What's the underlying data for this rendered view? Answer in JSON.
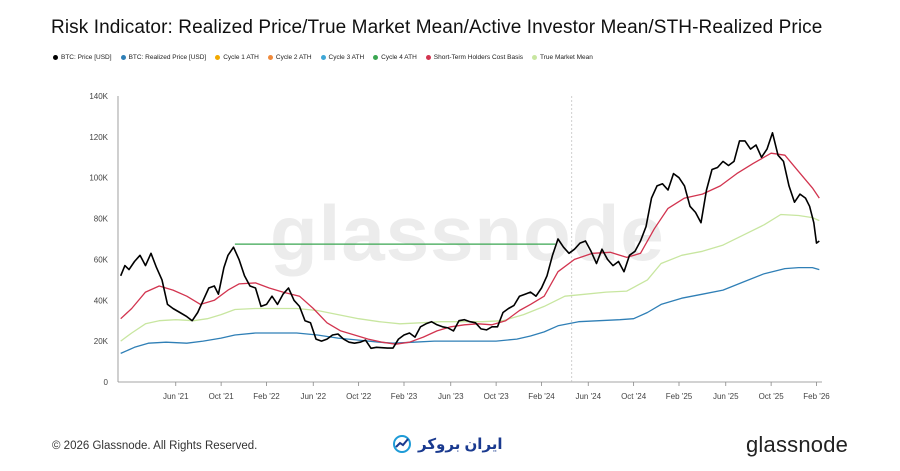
{
  "header": {
    "title": "Risk Indicator: Realized Price/True Market Mean/Active Investor Mean/STH-Realized Price"
  },
  "legend": [
    {
      "label": "BTC: Price [USD]",
      "color": "#000000"
    },
    {
      "label": "BTC: Realized Price [USD]",
      "color": "#2f7fb6"
    },
    {
      "label": "Cycle 1 ATH",
      "color": "#f2a900"
    },
    {
      "label": "Cycle 2 ATH",
      "color": "#f08a3c"
    },
    {
      "label": "Cycle 3 ATH",
      "color": "#3fa7d6"
    },
    {
      "label": "Cycle 4 ATH",
      "color": "#3aa651"
    },
    {
      "label": "Short-Term Holders Cost Basis",
      "color": "#d2344f"
    },
    {
      "label": "True Market Mean",
      "color": "#c8e6a0"
    }
  ],
  "watermark": "glassnode",
  "chart_data": {
    "type": "line",
    "y_ticks": [
      "140K",
      "120K",
      "100K",
      "80K",
      "60K",
      "40K",
      "20K",
      "0"
    ],
    "ylim": [
      0,
      140000
    ],
    "x_ticks": [
      {
        "label": "Jun '21",
        "t": 2021.42
      },
      {
        "label": "Oct '21",
        "t": 2021.75
      },
      {
        "label": "Feb '22",
        "t": 2022.08
      },
      {
        "label": "Jun '22",
        "t": 2022.42
      },
      {
        "label": "Oct '22",
        "t": 2022.75
      },
      {
        "label": "Feb '23",
        "t": 2023.08
      },
      {
        "label": "Jun '23",
        "t": 2023.42
      },
      {
        "label": "Oct '23",
        "t": 2023.75
      },
      {
        "label": "Feb '24",
        "t": 2024.08
      },
      {
        "label": "Jun '24",
        "t": 2024.42
      },
      {
        "label": "Oct '24",
        "t": 2024.75
      },
      {
        "label": "Feb '25",
        "t": 2025.08
      },
      {
        "label": "Jun '25",
        "t": 2025.42
      },
      {
        "label": "Oct '25",
        "t": 2025.75
      },
      {
        "label": "Feb '26",
        "t": 2026.08
      }
    ],
    "xlim": [
      2021.0,
      2026.12
    ],
    "halving_marker": 2024.3,
    "cycle4_ath_line": {
      "value": 67500,
      "from": 2021.85,
      "to": 2024.18
    },
    "series": [
      {
        "name": "BTC: Price [USD]",
        "color": "#000000",
        "points": [
          [
            2021.02,
            52000
          ],
          [
            2021.05,
            57000
          ],
          [
            2021.08,
            55000
          ],
          [
            2021.12,
            59000
          ],
          [
            2021.16,
            62000
          ],
          [
            2021.2,
            57000
          ],
          [
            2021.24,
            63000
          ],
          [
            2021.28,
            56000
          ],
          [
            2021.32,
            50000
          ],
          [
            2021.36,
            38000
          ],
          [
            2021.4,
            36000
          ],
          [
            2021.45,
            34000
          ],
          [
            2021.5,
            32000
          ],
          [
            2021.54,
            30000
          ],
          [
            2021.58,
            34000
          ],
          [
            2021.62,
            40000
          ],
          [
            2021.66,
            46000
          ],
          [
            2021.7,
            47000
          ],
          [
            2021.73,
            43000
          ],
          [
            2021.77,
            56000
          ],
          [
            2021.8,
            62000
          ],
          [
            2021.84,
            66000
          ],
          [
            2021.88,
            60000
          ],
          [
            2021.92,
            52000
          ],
          [
            2021.96,
            47000
          ],
          [
            2022.0,
            46000
          ],
          [
            2022.04,
            37000
          ],
          [
            2022.08,
            38000
          ],
          [
            2022.12,
            42000
          ],
          [
            2022.16,
            38000
          ],
          [
            2022.2,
            43000
          ],
          [
            2022.24,
            46000
          ],
          [
            2022.28,
            40000
          ],
          [
            2022.32,
            37000
          ],
          [
            2022.36,
            30000
          ],
          [
            2022.4,
            29000
          ],
          [
            2022.44,
            21000
          ],
          [
            2022.48,
            20000
          ],
          [
            2022.52,
            21000
          ],
          [
            2022.56,
            23000
          ],
          [
            2022.6,
            23500
          ],
          [
            2022.64,
            21000
          ],
          [
            2022.68,
            19500
          ],
          [
            2022.72,
            19000
          ],
          [
            2022.76,
            19500
          ],
          [
            2022.8,
            20500
          ],
          [
            2022.84,
            16500
          ],
          [
            2022.88,
            17000
          ],
          [
            2022.92,
            16800
          ],
          [
            2022.96,
            16600
          ],
          [
            2023.0,
            16600
          ],
          [
            2023.04,
            21000
          ],
          [
            2023.08,
            23000
          ],
          [
            2023.12,
            24000
          ],
          [
            2023.16,
            22000
          ],
          [
            2023.2,
            27000
          ],
          [
            2023.24,
            28500
          ],
          [
            2023.28,
            29500
          ],
          [
            2023.32,
            28000
          ],
          [
            2023.36,
            27000
          ],
          [
            2023.4,
            26500
          ],
          [
            2023.44,
            25000
          ],
          [
            2023.48,
            30000
          ],
          [
            2023.52,
            30500
          ],
          [
            2023.56,
            29500
          ],
          [
            2023.6,
            29000
          ],
          [
            2023.64,
            26000
          ],
          [
            2023.68,
            25500
          ],
          [
            2023.72,
            27000
          ],
          [
            2023.76,
            27000
          ],
          [
            2023.8,
            34000
          ],
          [
            2023.84,
            36000
          ],
          [
            2023.88,
            37500
          ],
          [
            2023.92,
            42000
          ],
          [
            2023.96,
            43000
          ],
          [
            2024.0,
            44000
          ],
          [
            2024.04,
            42000
          ],
          [
            2024.08,
            46000
          ],
          [
            2024.12,
            52000
          ],
          [
            2024.16,
            62000
          ],
          [
            2024.2,
            70000
          ],
          [
            2024.24,
            66000
          ],
          [
            2024.28,
            63000
          ],
          [
            2024.32,
            65000
          ],
          [
            2024.36,
            68000
          ],
          [
            2024.4,
            69000
          ],
          [
            2024.44,
            64000
          ],
          [
            2024.48,
            58000
          ],
          [
            2024.52,
            65000
          ],
          [
            2024.56,
            60000
          ],
          [
            2024.6,
            57000
          ],
          [
            2024.64,
            59000
          ],
          [
            2024.68,
            54000
          ],
          [
            2024.72,
            62000
          ],
          [
            2024.76,
            64000
          ],
          [
            2024.8,
            69000
          ],
          [
            2024.84,
            76000
          ],
          [
            2024.88,
            90000
          ],
          [
            2024.92,
            96000
          ],
          [
            2024.96,
            97000
          ],
          [
            2025.0,
            94000
          ],
          [
            2025.04,
            102000
          ],
          [
            2025.08,
            100000
          ],
          [
            2025.12,
            96000
          ],
          [
            2025.16,
            86000
          ],
          [
            2025.2,
            83000
          ],
          [
            2025.24,
            78000
          ],
          [
            2025.28,
            94000
          ],
          [
            2025.32,
            104000
          ],
          [
            2025.36,
            105000
          ],
          [
            2025.4,
            108000
          ],
          [
            2025.44,
            106000
          ],
          [
            2025.48,
            108000
          ],
          [
            2025.52,
            118000
          ],
          [
            2025.56,
            118000
          ],
          [
            2025.6,
            114000
          ],
          [
            2025.64,
            116000
          ],
          [
            2025.68,
            110000
          ],
          [
            2025.72,
            114000
          ],
          [
            2025.76,
            122000
          ],
          [
            2025.8,
            111000
          ],
          [
            2025.84,
            108000
          ],
          [
            2025.88,
            96000
          ],
          [
            2025.92,
            88000
          ],
          [
            2025.96,
            92000
          ],
          [
            2026.0,
            90000
          ],
          [
            2026.03,
            86000
          ],
          [
            2026.06,
            78000
          ],
          [
            2026.08,
            68000
          ],
          [
            2026.1,
            69000
          ]
        ]
      },
      {
        "name": "BTC: Realized Price [USD]",
        "color": "#2f7fb6",
        "points": [
          [
            2021.02,
            14000
          ],
          [
            2021.12,
            17000
          ],
          [
            2021.22,
            19000
          ],
          [
            2021.35,
            19500
          ],
          [
            2021.5,
            19000
          ],
          [
            2021.62,
            20000
          ],
          [
            2021.75,
            21500
          ],
          [
            2021.85,
            23000
          ],
          [
            2022.0,
            24000
          ],
          [
            2022.15,
            24000
          ],
          [
            2022.3,
            24000
          ],
          [
            2022.45,
            23000
          ],
          [
            2022.6,
            21500
          ],
          [
            2022.75,
            20500
          ],
          [
            2022.9,
            19500
          ],
          [
            2023.0,
            19000
          ],
          [
            2023.15,
            19500
          ],
          [
            2023.3,
            20000
          ],
          [
            2023.45,
            20000
          ],
          [
            2023.6,
            20000
          ],
          [
            2023.75,
            20000
          ],
          [
            2023.9,
            21000
          ],
          [
            2024.0,
            22500
          ],
          [
            2024.1,
            24500
          ],
          [
            2024.2,
            27500
          ],
          [
            2024.35,
            29500
          ],
          [
            2024.5,
            30000
          ],
          [
            2024.65,
            30500
          ],
          [
            2024.75,
            31000
          ],
          [
            2024.85,
            34000
          ],
          [
            2024.95,
            38000
          ],
          [
            2025.1,
            41000
          ],
          [
            2025.25,
            43000
          ],
          [
            2025.4,
            45000
          ],
          [
            2025.55,
            49000
          ],
          [
            2025.7,
            53000
          ],
          [
            2025.85,
            55500
          ],
          [
            2025.95,
            56000
          ],
          [
            2026.05,
            56000
          ],
          [
            2026.1,
            55000
          ]
        ]
      },
      {
        "name": "Short-Term Holders Cost Basis",
        "color": "#d2344f",
        "points": [
          [
            2021.02,
            31000
          ],
          [
            2021.1,
            36000
          ],
          [
            2021.2,
            44000
          ],
          [
            2021.3,
            47000
          ],
          [
            2021.4,
            45000
          ],
          [
            2021.5,
            42000
          ],
          [
            2021.6,
            38000
          ],
          [
            2021.7,
            40000
          ],
          [
            2021.8,
            45000
          ],
          [
            2021.88,
            48000
          ],
          [
            2022.0,
            48500
          ],
          [
            2022.1,
            46000
          ],
          [
            2022.2,
            44000
          ],
          [
            2022.32,
            42000
          ],
          [
            2022.42,
            36000
          ],
          [
            2022.52,
            29000
          ],
          [
            2022.62,
            25000
          ],
          [
            2022.72,
            23000
          ],
          [
            2022.82,
            21000
          ],
          [
            2022.92,
            19500
          ],
          [
            2023.02,
            18500
          ],
          [
            2023.12,
            19500
          ],
          [
            2023.22,
            22000
          ],
          [
            2023.32,
            25000
          ],
          [
            2023.42,
            27000
          ],
          [
            2023.52,
            28000
          ],
          [
            2023.62,
            28500
          ],
          [
            2023.72,
            28000
          ],
          [
            2023.82,
            30000
          ],
          [
            2023.92,
            35000
          ],
          [
            2024.0,
            38000
          ],
          [
            2024.1,
            42000
          ],
          [
            2024.2,
            54000
          ],
          [
            2024.32,
            60000
          ],
          [
            2024.45,
            63000
          ],
          [
            2024.58,
            63500
          ],
          [
            2024.7,
            61000
          ],
          [
            2024.8,
            63000
          ],
          [
            2024.9,
            75000
          ],
          [
            2025.0,
            85000
          ],
          [
            2025.12,
            90000
          ],
          [
            2025.25,
            92000
          ],
          [
            2025.38,
            96000
          ],
          [
            2025.5,
            102000
          ],
          [
            2025.62,
            107000
          ],
          [
            2025.75,
            112000
          ],
          [
            2025.85,
            111000
          ],
          [
            2025.95,
            103000
          ],
          [
            2026.05,
            95000
          ],
          [
            2026.1,
            90000
          ]
        ]
      },
      {
        "name": "True Market Mean",
        "color": "#c8e6a0",
        "points": [
          [
            2021.02,
            20000
          ],
          [
            2021.1,
            24000
          ],
          [
            2021.2,
            28500
          ],
          [
            2021.3,
            30000
          ],
          [
            2021.42,
            30500
          ],
          [
            2021.55,
            30000
          ],
          [
            2021.65,
            31000
          ],
          [
            2021.75,
            33000
          ],
          [
            2021.85,
            35500
          ],
          [
            2022.0,
            36000
          ],
          [
            2022.15,
            36000
          ],
          [
            2022.3,
            36000
          ],
          [
            2022.45,
            35000
          ],
          [
            2022.6,
            33000
          ],
          [
            2022.75,
            31000
          ],
          [
            2022.9,
            29500
          ],
          [
            2023.05,
            28500
          ],
          [
            2023.2,
            29000
          ],
          [
            2023.35,
            29500
          ],
          [
            2023.5,
            29500
          ],
          [
            2023.65,
            29500
          ],
          [
            2023.8,
            30000
          ],
          [
            2023.95,
            33000
          ],
          [
            2024.1,
            37000
          ],
          [
            2024.25,
            42000
          ],
          [
            2024.4,
            43000
          ],
          [
            2024.55,
            44000
          ],
          [
            2024.7,
            44500
          ],
          [
            2024.85,
            50000
          ],
          [
            2024.95,
            58000
          ],
          [
            2025.1,
            62000
          ],
          [
            2025.25,
            64000
          ],
          [
            2025.4,
            67000
          ],
          [
            2025.55,
            72000
          ],
          [
            2025.7,
            77000
          ],
          [
            2025.82,
            82000
          ],
          [
            2025.95,
            81500
          ],
          [
            2026.05,
            80500
          ],
          [
            2026.1,
            79000
          ]
        ]
      }
    ]
  },
  "footer": {
    "copyright": "© 2026 Glassnode. All Rights Reserved.",
    "brand": "ایران بروکر",
    "logo": "glassnode"
  }
}
